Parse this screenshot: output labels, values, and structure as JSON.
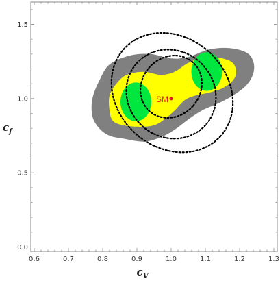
{
  "chart_data": {
    "type": "contour",
    "title": "",
    "xlabel": "c",
    "xlabel_sub": "V",
    "ylabel": "c",
    "ylabel_sub": "f",
    "xlim": [
      0.59,
      1.31
    ],
    "ylim": [
      -0.03,
      1.65
    ],
    "xticks": [
      0.6,
      0.7,
      0.8,
      0.9,
      1.0,
      1.1,
      1.2,
      1.3
    ],
    "xtick_labels": [
      "0.6",
      "0.7",
      "0.8",
      "0.9",
      "1.0",
      "1.1",
      "1.2",
      "1.3"
    ],
    "yticks": [
      0.0,
      0.5,
      1.0,
      1.5
    ],
    "ytick_labels": [
      "0.0",
      "0.5",
      "1.0",
      "1.5"
    ],
    "grid": false,
    "filled_regions": [
      {
        "level": "outer",
        "color": "#808080",
        "polygon": [
          [
            0.79,
            0.8
          ],
          [
            0.82,
            0.75
          ],
          [
            0.86,
            0.73
          ],
          [
            0.92,
            0.71
          ],
          [
            0.97,
            0.74
          ],
          [
            1.01,
            0.79
          ],
          [
            1.05,
            0.86
          ],
          [
            1.09,
            0.92
          ],
          [
            1.14,
            0.97
          ],
          [
            1.18,
            1.02
          ],
          [
            1.22,
            1.09
          ],
          [
            1.24,
            1.17
          ],
          [
            1.24,
            1.25
          ],
          [
            1.22,
            1.31
          ],
          [
            1.17,
            1.34
          ],
          [
            1.11,
            1.33
          ],
          [
            1.05,
            1.28
          ],
          [
            1.0,
            1.27
          ],
          [
            0.94,
            1.3
          ],
          [
            0.88,
            1.29
          ],
          [
            0.82,
            1.23
          ],
          [
            0.79,
            1.12
          ],
          [
            0.77,
            1.0
          ],
          [
            0.77,
            0.88
          ]
        ]
      },
      {
        "level": "middle",
        "color": "#ffff00",
        "polygon": [
          [
            0.82,
            0.92
          ],
          [
            0.83,
            0.85
          ],
          [
            0.86,
            0.82
          ],
          [
            0.91,
            0.81
          ],
          [
            0.95,
            0.82
          ],
          [
            0.98,
            0.86
          ],
          [
            1.01,
            0.92
          ],
          [
            1.04,
            0.99
          ],
          [
            1.07,
            1.02
          ],
          [
            1.11,
            1.04
          ],
          [
            1.15,
            1.07
          ],
          [
            1.18,
            1.12
          ],
          [
            1.19,
            1.18
          ],
          [
            1.18,
            1.24
          ],
          [
            1.15,
            1.27
          ],
          [
            1.1,
            1.28
          ],
          [
            1.05,
            1.24
          ],
          [
            1.01,
            1.18
          ],
          [
            0.97,
            1.16
          ],
          [
            0.92,
            1.18
          ],
          [
            0.87,
            1.16
          ],
          [
            0.84,
            1.1
          ],
          [
            0.82,
            1.02
          ]
        ]
      }
    ],
    "circles": [
      {
        "name": "green-left",
        "center": [
          0.897,
          0.978
        ],
        "radius_x": 0.045,
        "radius_y": 0.13,
        "fill": "#00e840"
      },
      {
        "name": "green-right",
        "center": [
          1.104,
          1.182
        ],
        "radius_x": 0.045,
        "radius_y": 0.13,
        "fill": "#00e840"
      }
    ],
    "dashed_ellipses": [
      {
        "center": [
          1.0,
          1.08
        ],
        "radius_x": 0.085,
        "radius_y": 0.22
      },
      {
        "center": [
          1.0,
          1.03
        ],
        "radius_x": 0.135,
        "radius_y": 0.29
      },
      {
        "center": [
          1.003,
          1.04
        ],
        "radius_x": 0.19,
        "radius_y": 0.37
      }
    ],
    "point": {
      "label": "SM",
      "x": 1.0,
      "y": 1.0,
      "color": "#e0211a"
    }
  }
}
